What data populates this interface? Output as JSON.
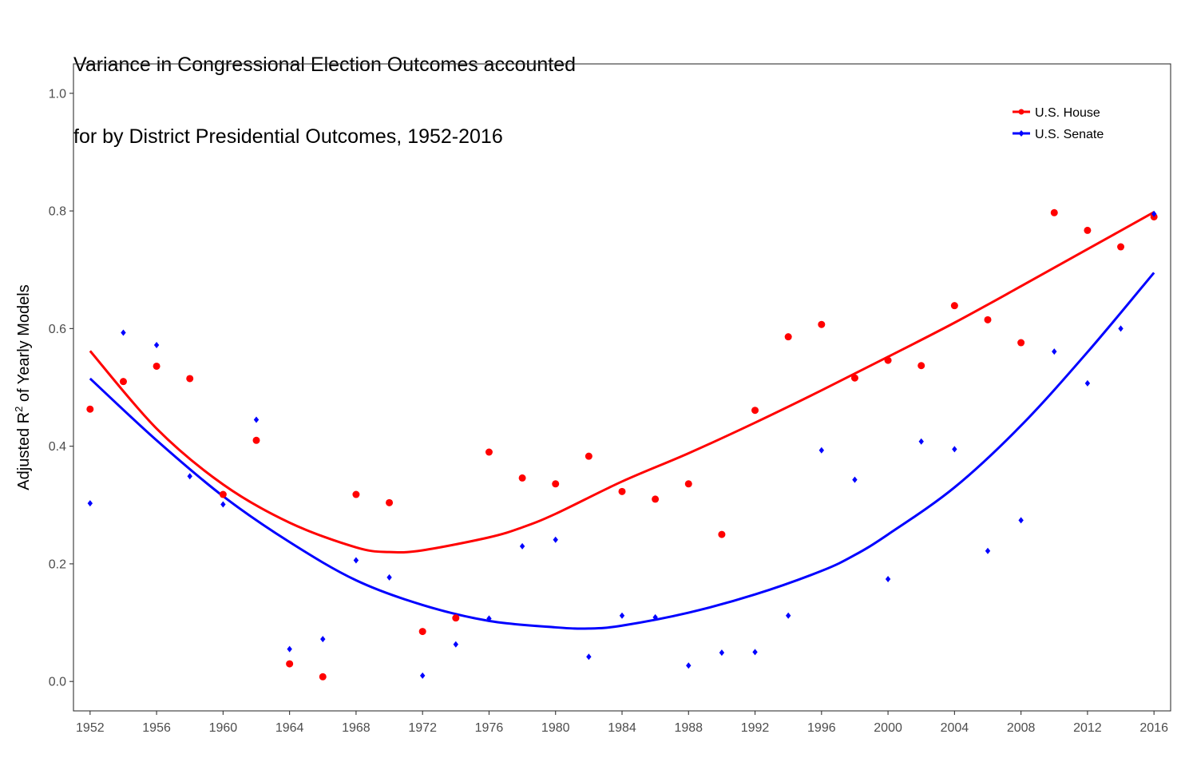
{
  "chart_data": {
    "type": "scatter",
    "title_line1": "Variance in Congressional Election Outcomes accounted",
    "title_line2": "for by District Presidential Outcomes, 1952-2016",
    "ylabel": {
      "prefix": "Adjusted R",
      "superscript": "2",
      "suffix": " of Yearly Models"
    },
    "xlabel": "",
    "xlim": [
      1951,
      2017
    ],
    "ylim": [
      -0.05,
      1.05
    ],
    "x_ticks": [
      1952,
      1956,
      1960,
      1964,
      1968,
      1972,
      1976,
      1980,
      1984,
      1988,
      1992,
      1996,
      2000,
      2004,
      2008,
      2012,
      2016
    ],
    "y_ticks": [
      0.0,
      0.2,
      0.4,
      0.6,
      0.8,
      1.0
    ],
    "y_tick_labels": [
      "0.0",
      "0.2",
      "0.4",
      "0.6",
      "0.8",
      "1.0"
    ],
    "grid": false,
    "legend_position": "top-right",
    "series": [
      {
        "name": "U.S. House",
        "color": "#ff0000",
        "marker": "circle",
        "x": [
          1952,
          1954,
          1956,
          1958,
          1960,
          1962,
          1964,
          1966,
          1968,
          1970,
          1972,
          1974,
          1976,
          1978,
          1980,
          1982,
          1984,
          1986,
          1988,
          1990,
          1992,
          1994,
          1996,
          1998,
          2000,
          2002,
          2004,
          2006,
          2008,
          2010,
          2012,
          2014,
          2016
        ],
        "y": [
          0.463,
          0.51,
          0.536,
          0.515,
          0.318,
          0.41,
          0.03,
          0.008,
          0.318,
          0.304,
          0.085,
          0.108,
          0.39,
          0.346,
          0.336,
          0.383,
          0.323,
          0.31,
          0.336,
          0.25,
          0.461,
          0.586,
          0.607,
          0.516,
          0.546,
          0.537,
          0.639,
          0.615,
          0.576,
          0.797,
          0.767,
          0.739,
          0.79
        ],
        "smooth_x": [
          1952,
          1956,
          1960,
          1964,
          1968,
          1970,
          1972,
          1976,
          1978,
          1980,
          1984,
          1988,
          1992,
          1996,
          2000,
          2004,
          2008,
          2012,
          2016
        ],
        "smooth_y": [
          0.562,
          0.43,
          0.335,
          0.27,
          0.228,
          0.22,
          0.223,
          0.245,
          0.262,
          0.285,
          0.34,
          0.388,
          0.44,
          0.495,
          0.552,
          0.61,
          0.672,
          0.735,
          0.798
        ]
      },
      {
        "name": "U.S. Senate",
        "color": "#0000ff",
        "marker": "diamond",
        "x": [
          1952,
          1954,
          1956,
          1958,
          1960,
          1962,
          1964,
          1966,
          1968,
          1970,
          1972,
          1974,
          1976,
          1978,
          1980,
          1982,
          1984,
          1986,
          1988,
          1990,
          1992,
          1994,
          1996,
          1998,
          2000,
          2002,
          2004,
          2006,
          2008,
          2010,
          2012,
          2014,
          2016
        ],
        "y": [
          0.303,
          0.593,
          0.572,
          0.349,
          0.301,
          0.445,
          0.055,
          0.072,
          0.206,
          0.177,
          0.01,
          0.063,
          0.107,
          0.23,
          0.241,
          0.042,
          0.112,
          0.109,
          0.027,
          0.049,
          0.05,
          0.112,
          0.393,
          0.343,
          0.174,
          0.408,
          0.395,
          0.222,
          0.274,
          0.561,
          0.507,
          0.6,
          0.795
        ],
        "smooth_x": [
          1952,
          1956,
          1960,
          1964,
          1968,
          1972,
          1976,
          1980,
          1982,
          1984,
          1988,
          1992,
          1996,
          1998,
          2000,
          2004,
          2008,
          2012,
          2016
        ],
        "smooth_y": [
          0.515,
          0.41,
          0.315,
          0.237,
          0.172,
          0.13,
          0.103,
          0.092,
          0.09,
          0.095,
          0.117,
          0.148,
          0.188,
          0.215,
          0.25,
          0.33,
          0.435,
          0.56,
          0.695
        ]
      }
    ]
  }
}
